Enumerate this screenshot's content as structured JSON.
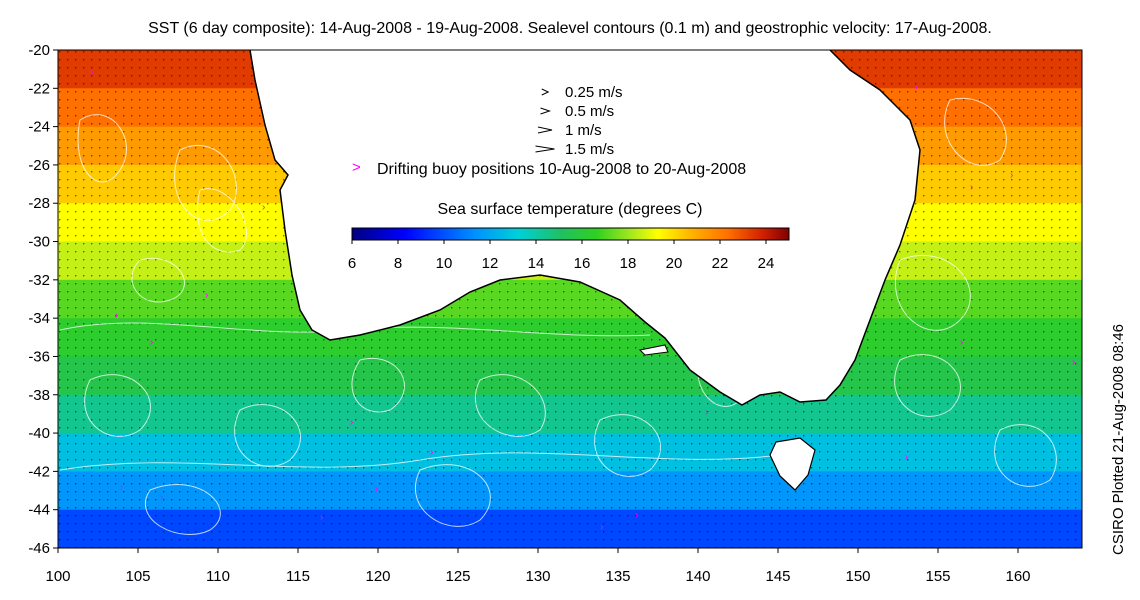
{
  "title": "SST (6 day composite): 14-Aug-2008 - 19-Aug-2008. Sealevel contours (0.1 m) and geostrophic velocity: 17-Aug-2008.",
  "credit": "CSIRO Plotted 21-Aug-2008 08:46",
  "legend": {
    "velocity_scales": [
      {
        "label": "0.25 m/s",
        "speed": 0.25
      },
      {
        "label": "0.5 m/s",
        "speed": 0.5
      },
      {
        "label": "1 m/s",
        "speed": 1
      },
      {
        "label": "1.5 m/s",
        "speed": 1.5
      }
    ],
    "buoy_marker": ">",
    "buoy_label": "Drifting buoy positions 10-Aug-2008 to 20-Aug-2008",
    "colorbar_title": "Sea surface temperature (degrees C)",
    "colorbar_ticks": [
      "6",
      "8",
      "10",
      "12",
      "14",
      "16",
      "18",
      "20",
      "22",
      "24"
    ],
    "colorbar_range": [
      6,
      25
    ]
  },
  "map": {
    "lon_range": [
      100,
      164
    ],
    "lat_range": [
      -46,
      -20
    ],
    "lon_ticks": [
      "100",
      "105",
      "110",
      "115",
      "120",
      "125",
      "130",
      "135",
      "140",
      "145",
      "150",
      "155",
      "160"
    ],
    "lat_ticks": [
      "-20",
      "-22",
      "-24",
      "-26",
      "-28",
      "-30",
      "-32",
      "-34",
      "-36",
      "-38",
      "-40",
      "-42",
      "-44",
      "-46"
    ],
    "colors": {
      "land": "#ffffff",
      "coastline": "#000000",
      "contours": "#ffffff",
      "buoys": "#ff00ff",
      "vectors": "#000000"
    },
    "sst_bands": [
      {
        "lat": [
          -20,
          -22
        ],
        "temp": 22.5
      },
      {
        "lat": [
          -22,
          -24
        ],
        "temp": 21.5
      },
      {
        "lat": [
          -24,
          -26
        ],
        "temp": 20.5
      },
      {
        "lat": [
          -26,
          -28
        ],
        "temp": 19.5
      },
      {
        "lat": [
          -28,
          -30
        ],
        "temp": 18.5
      },
      {
        "lat": [
          -30,
          -32
        ],
        "temp": 17.5
      },
      {
        "lat": [
          -32,
          -34
        ],
        "temp": 16.0
      },
      {
        "lat": [
          -34,
          -36
        ],
        "temp": 15.2
      },
      {
        "lat": [
          -36,
          -38
        ],
        "temp": 14.5
      },
      {
        "lat": [
          -38,
          -40
        ],
        "temp": 13.2
      },
      {
        "lat": [
          -40,
          -42
        ],
        "temp": 11.5
      },
      {
        "lat": [
          -42,
          -44
        ],
        "temp": 10.2
      },
      {
        "lat": [
          -44,
          -46
        ],
        "temp": 9.0
      }
    ]
  }
}
